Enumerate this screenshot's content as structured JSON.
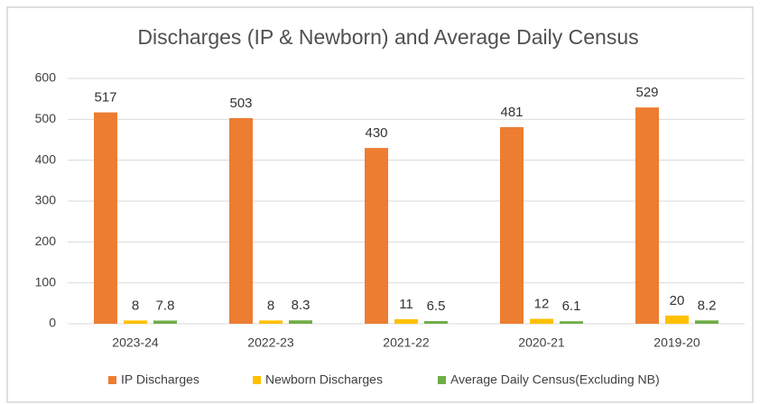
{
  "chart_data": {
    "type": "bar",
    "title": "Discharges (IP & Newborn) and Average Daily Census",
    "categories": [
      "2023-24",
      "2022-23",
      "2021-22",
      "2020-21",
      "2019-20"
    ],
    "series": [
      {
        "name": "IP Discharges",
        "color": "#ed7d31",
        "values": [
          517,
          503,
          430,
          481,
          529
        ]
      },
      {
        "name": "Newborn Discharges",
        "color": "#ffc000",
        "values": [
          8,
          8,
          11,
          12,
          20
        ]
      },
      {
        "name": "Average Daily Census(Excluding NB)",
        "color": "#70ad47",
        "values": [
          7.8,
          8.3,
          6.5,
          6.1,
          8.2
        ]
      }
    ],
    "ylim": [
      0,
      600
    ],
    "yticks": [
      0,
      100,
      200,
      300,
      400,
      500,
      600
    ],
    "grid": true,
    "legend": "bottom"
  }
}
